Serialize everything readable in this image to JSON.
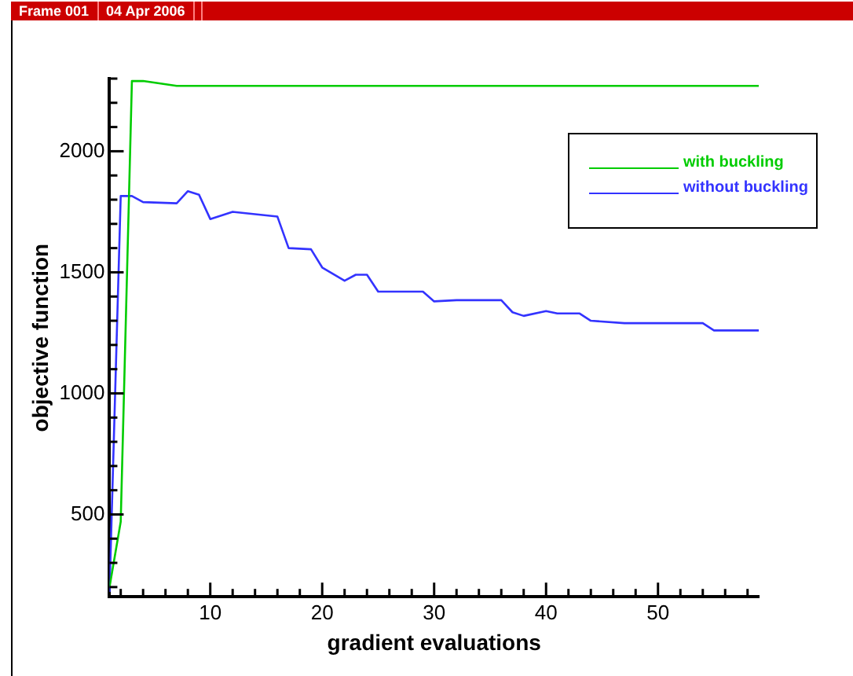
{
  "chart_data": {
    "type": "line",
    "xlabel": "gradient evaluations",
    "ylabel": "objective function",
    "annotations": [
      "Frame 001",
      "04 Apr 2006"
    ],
    "xlim": [
      1,
      59
    ],
    "ylim": [
      160,
      2300
    ],
    "xticks": [
      {
        "value": 2,
        "label": null
      },
      {
        "value": 4,
        "label": null
      },
      {
        "value": 6,
        "label": null
      },
      {
        "value": 8,
        "label": null
      },
      10,
      {
        "value": 12,
        "label": null
      },
      {
        "value": 14,
        "label": null
      },
      {
        "value": 16,
        "label": null
      },
      {
        "value": 18,
        "label": null
      },
      20,
      {
        "value": 22,
        "label": null
      },
      {
        "value": 24,
        "label": null
      },
      {
        "value": 26,
        "label": null
      },
      {
        "value": 28,
        "label": null
      },
      30,
      {
        "value": 32,
        "label": null
      },
      {
        "value": 34,
        "label": null
      },
      {
        "value": 36,
        "label": null
      },
      {
        "value": 38,
        "label": null
      },
      40,
      {
        "value": 42,
        "label": null
      },
      {
        "value": 44,
        "label": null
      },
      {
        "value": 46,
        "label": null
      },
      {
        "value": 48,
        "label": null
      },
      50,
      {
        "value": 52,
        "label": null
      },
      {
        "value": 54,
        "label": null
      },
      {
        "value": 56,
        "label": null
      },
      {
        "value": 58,
        "label": null
      }
    ],
    "yticks": [
      {
        "value": 200,
        "label": null
      },
      {
        "value": 300,
        "label": null
      },
      {
        "value": 400,
        "label": null
      },
      500,
      {
        "value": 600,
        "label": null
      },
      {
        "value": 700,
        "label": null
      },
      {
        "value": 800,
        "label": null
      },
      {
        "value": 900,
        "label": null
      },
      1000,
      {
        "value": 1100,
        "label": null
      },
      {
        "value": 1200,
        "label": null
      },
      {
        "value": 1300,
        "label": null
      },
      {
        "value": 1400,
        "label": null
      },
      1500,
      {
        "value": 1600,
        "label": null
      },
      {
        "value": 1700,
        "label": null
      },
      {
        "value": 1800,
        "label": null
      },
      {
        "value": 1900,
        "label": null
      },
      2000,
      {
        "value": 2100,
        "label": null
      },
      {
        "value": 2200,
        "label": null
      },
      {
        "value": 2300,
        "label": null
      }
    ],
    "grid": false,
    "legend": "top right",
    "marker": "none",
    "line_style": "solid",
    "series": [
      {
        "name": "with buckling",
        "color": "#00cc00",
        "x": [
          1,
          2,
          3,
          4,
          7,
          59
        ],
        "values": [
          200,
          470,
          2290,
          2290,
          2270,
          2270
        ]
      },
      {
        "name": "without buckling",
        "color": "#3333ff",
        "x": [
          1,
          2,
          3,
          4,
          7,
          8,
          9,
          10,
          12,
          16,
          17,
          19,
          20,
          22,
          23,
          24,
          25,
          29,
          30,
          32,
          36,
          37,
          38,
          40,
          41,
          43,
          44,
          47,
          54,
          55,
          59
        ],
        "values": [
          180,
          1815,
          1815,
          1790,
          1785,
          1835,
          1820,
          1720,
          1750,
          1730,
          1600,
          1595,
          1520,
          1465,
          1490,
          1490,
          1420,
          1420,
          1380,
          1385,
          1385,
          1335,
          1320,
          1340,
          1330,
          1330,
          1300,
          1290,
          1290,
          1260,
          1260
        ]
      }
    ]
  }
}
